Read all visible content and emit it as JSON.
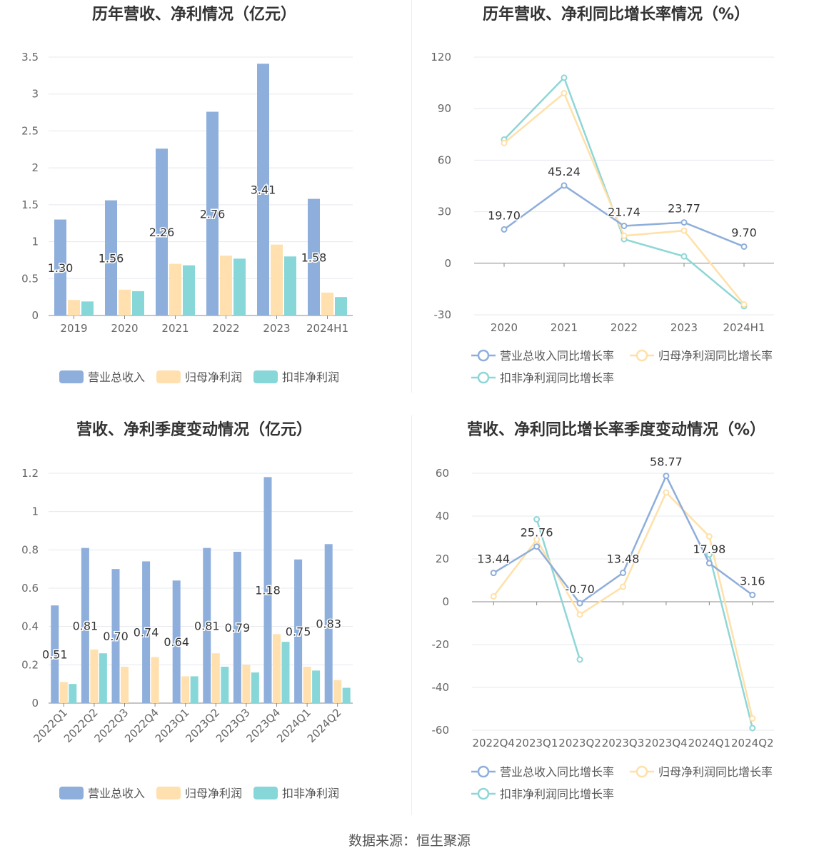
{
  "colors": {
    "revenue": "#8eaedb",
    "net_profit": "#ffe0ae",
    "deducted_profit": "#88d7d8",
    "net_profit_line": "#ffe0a8",
    "deducted_line": "#8fd6d6"
  },
  "legend": {
    "revenue": "营业总收入",
    "net_profit": "归母净利润",
    "deducted": "扣非净利润",
    "revenue_growth": "营业总收入同比增长率",
    "net_profit_growth": "归母净利润同比增长率",
    "deducted_growth": "扣非净利润同比增长率"
  },
  "footer": "数据来源：恒生聚源",
  "chart_data": [
    {
      "type": "bar",
      "title": "历年营收、净利情况（亿元）",
      "categories": [
        "2019",
        "2020",
        "2021",
        "2022",
        "2023",
        "2024H1"
      ],
      "ylim": [
        0,
        3.5
      ],
      "yticks": [
        0,
        0.5,
        1,
        1.5,
        2,
        2.5,
        3,
        3.5
      ],
      "ytick_labels": [
        "0",
        "0.5",
        "1",
        "1.5",
        "2",
        "2.5",
        "3",
        "3.5"
      ],
      "series": [
        {
          "name": "营业总收入",
          "values": [
            1.3,
            1.56,
            2.26,
            2.76,
            3.41,
            1.58
          ],
          "labels": [
            "1.30",
            "1.56",
            "2.26",
            "2.76",
            "3.41",
            "1.58"
          ]
        },
        {
          "name": "归母净利润",
          "values": [
            0.21,
            0.35,
            0.7,
            0.81,
            0.96,
            0.31
          ]
        },
        {
          "name": "扣非净利润",
          "values": [
            0.19,
            0.33,
            0.68,
            0.77,
            0.8,
            0.25
          ]
        }
      ],
      "legend_position": "bottom"
    },
    {
      "type": "line",
      "title": "历年营收、净利同比增长率情况（%）",
      "categories": [
        "2020",
        "2021",
        "2022",
        "2023",
        "2024H1"
      ],
      "ylim": [
        -30,
        120
      ],
      "yticks": [
        -30,
        0,
        30,
        60,
        90,
        120
      ],
      "ytick_labels": [
        "-30",
        "0",
        "30",
        "60",
        "90",
        "120"
      ],
      "series": [
        {
          "name": "营业总收入同比增长率",
          "values": [
            19.7,
            45.24,
            21.74,
            23.77,
            9.7
          ],
          "labels": [
            "19.70",
            "45.24",
            "21.74",
            "23.77",
            "9.70"
          ]
        },
        {
          "name": "归母净利润同比增长率",
          "values": [
            70,
            99,
            16,
            19,
            -24
          ]
        },
        {
          "name": "扣非净利润同比增长率",
          "values": [
            72,
            108,
            14,
            4,
            -25
          ]
        }
      ],
      "legend_position": "bottom"
    },
    {
      "type": "bar",
      "title": "营收、净利季度变动情况（亿元）",
      "categories": [
        "2022Q1",
        "2022Q2",
        "2022Q3",
        "2022Q4",
        "2023Q1",
        "2023Q2",
        "2023Q3",
        "2023Q4",
        "2024Q1",
        "2024Q2"
      ],
      "ylim": [
        0,
        1.2
      ],
      "yticks": [
        0,
        0.2,
        0.4,
        0.6,
        0.8,
        1,
        1.2
      ],
      "ytick_labels": [
        "0",
        "0.2",
        "0.4",
        "0.6",
        "0.8",
        "1",
        "1.2"
      ],
      "series": [
        {
          "name": "营业总收入",
          "values": [
            0.51,
            0.81,
            0.7,
            0.74,
            0.64,
            0.81,
            0.79,
            1.18,
            0.75,
            0.83
          ],
          "labels": [
            "0.51",
            "0.81",
            "0.70",
            "0.74",
            "0.64",
            "0.81",
            "0.79",
            "1.18",
            "0.75",
            "0.83"
          ]
        },
        {
          "name": "归母净利润",
          "values": [
            0.11,
            0.28,
            0.19,
            0.24,
            0.14,
            0.26,
            0.2,
            0.36,
            0.19,
            0.12
          ]
        },
        {
          "name": "扣非净利润",
          "values": [
            0.1,
            0.26,
            null,
            null,
            0.14,
            0.19,
            0.16,
            0.32,
            0.17,
            0.08
          ]
        }
      ],
      "legend_position": "bottom"
    },
    {
      "type": "line",
      "title": "营收、净利同比增长率季度变动情况（%）",
      "categories": [
        "2022Q4",
        "2023Q1",
        "2023Q2",
        "2023Q3",
        "2023Q4",
        "2024Q1",
        "2024Q2"
      ],
      "ylim": [
        -60,
        60
      ],
      "yticks": [
        -60,
        -40,
        -20,
        0,
        20,
        40,
        60
      ],
      "ytick_labels": [
        "-60",
        "-40",
        "-20",
        "0",
        "20",
        "40",
        "60"
      ],
      "series": [
        {
          "name": "营业总收入同比增长率",
          "values": [
            13.44,
            25.76,
            -0.7,
            13.48,
            58.77,
            17.98,
            3.16
          ],
          "labels": [
            "13.44",
            "25.76",
            "-0.70",
            "13.48",
            "58.77",
            "17.98",
            "3.16"
          ]
        },
        {
          "name": "归母净利润同比增长率",
          "values": [
            2.5,
            29,
            -6,
            7,
            51,
            30.5,
            -54.5
          ]
        },
        {
          "name": "扣非净利润同比增长率",
          "values": [
            null,
            38.5,
            -27,
            null,
            null,
            22,
            -59
          ]
        }
      ],
      "legend_position": "bottom"
    }
  ]
}
